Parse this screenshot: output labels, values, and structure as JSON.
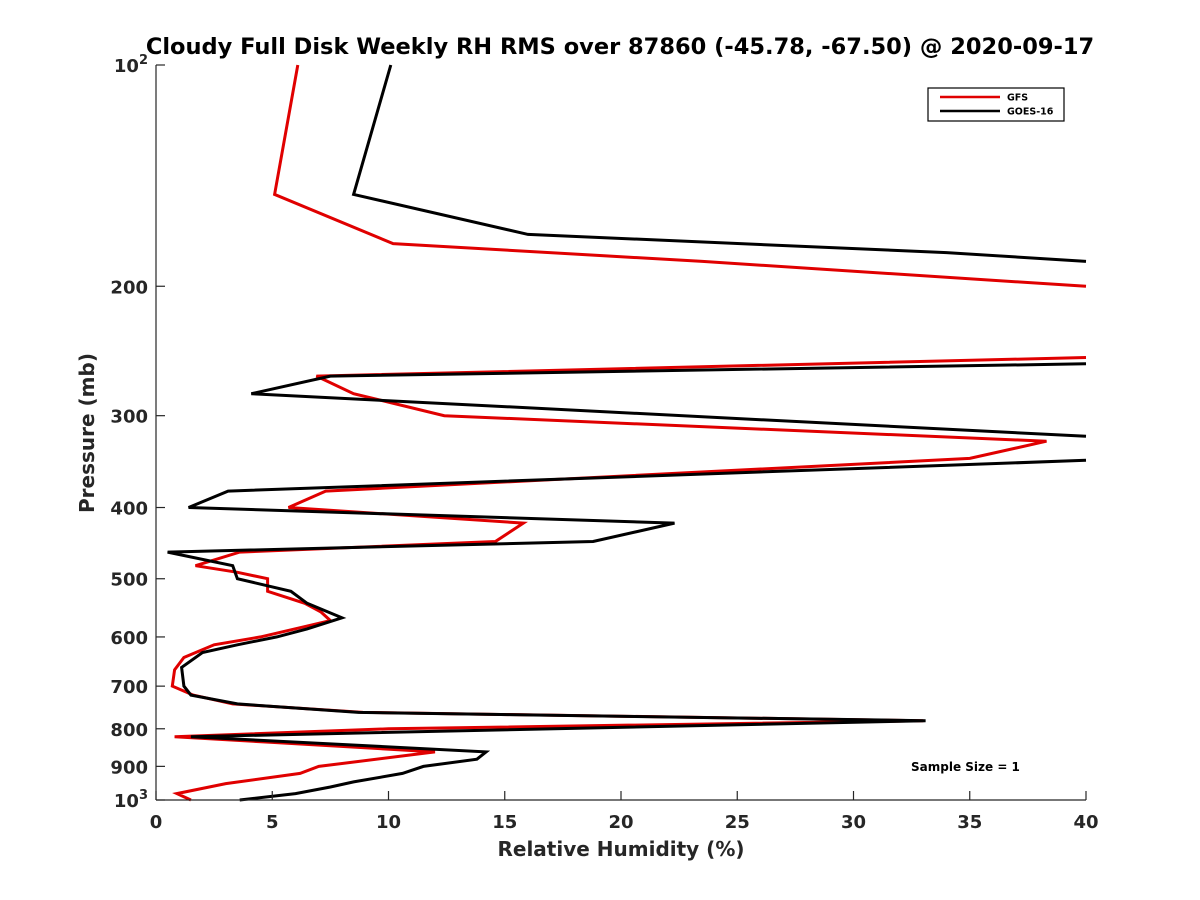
{
  "chart_data": {
    "type": "line",
    "title": "Cloudy Full Disk Weekly RH RMS over 87860 (-45.78, -67.50) @ 2020-09-17",
    "xlabel": "Relative Humidity (%)",
    "ylabel": "Pressure (mb)",
    "xlim": [
      0,
      40
    ],
    "ylim": [
      100,
      1000
    ],
    "yscale": "log",
    "y_reversed": true,
    "grid": false,
    "legend_position": "top-right",
    "x_ticks": [
      "0",
      "5",
      "10",
      "15",
      "20",
      "25",
      "30",
      "35",
      "40"
    ],
    "y_ticks": [
      {
        "value": 100,
        "base": "10",
        "exp": "2"
      },
      {
        "value": 200,
        "label": "200"
      },
      {
        "value": 300,
        "label": "300"
      },
      {
        "value": 400,
        "label": "400"
      },
      {
        "value": 500,
        "label": "500"
      },
      {
        "value": 600,
        "label": "600"
      },
      {
        "value": 700,
        "label": "700"
      },
      {
        "value": 800,
        "label": "800"
      },
      {
        "value": 900,
        "label": "900"
      },
      {
        "value": 1000,
        "base": "10",
        "exp": "3"
      }
    ],
    "series": [
      {
        "name": "GFS",
        "color": "#e00000",
        "points": [
          [
            6.1,
            100
          ],
          [
            5.1,
            150
          ],
          [
            10.2,
            175
          ],
          [
            23.5,
            185
          ],
          [
            40.0,
            200
          ],
          [
            null,
            null
          ],
          [
            40.0,
            250
          ],
          [
            6.9,
            265
          ],
          [
            8.5,
            280
          ],
          [
            12.4,
            300
          ],
          [
            38.3,
            325
          ],
          [
            35.0,
            343
          ],
          [
            7.3,
            380
          ],
          [
            5.7,
            400
          ],
          [
            15.8,
            420
          ],
          [
            14.6,
            445
          ],
          [
            3.6,
            460
          ],
          [
            1.7,
            480
          ],
          [
            3.5,
            490
          ],
          [
            4.8,
            500
          ],
          [
            4.8,
            520
          ],
          [
            6.4,
            540
          ],
          [
            7.1,
            555
          ],
          [
            7.5,
            570
          ],
          [
            6.5,
            580
          ],
          [
            4.5,
            600
          ],
          [
            2.5,
            615
          ],
          [
            1.2,
            640
          ],
          [
            0.8,
            665
          ],
          [
            0.7,
            700
          ],
          [
            1.6,
            720
          ],
          [
            3.3,
            740
          ],
          [
            8.9,
            760
          ],
          [
            33.0,
            780
          ],
          [
            10.0,
            800
          ],
          [
            0.8,
            820
          ],
          [
            5.0,
            835
          ],
          [
            12.0,
            860
          ],
          [
            7.0,
            900
          ],
          [
            6.2,
            920
          ],
          [
            3.0,
            950
          ],
          [
            0.9,
            980
          ],
          [
            1.5,
            1000
          ]
        ]
      },
      {
        "name": "GOES-16",
        "color": "#000000",
        "points": [
          [
            10.1,
            100
          ],
          [
            8.5,
            150
          ],
          [
            16.0,
            170
          ],
          [
            34.0,
            180
          ],
          [
            40.0,
            185
          ],
          [
            null,
            null
          ],
          [
            40.0,
            255
          ],
          [
            7.5,
            265
          ],
          [
            4.1,
            280
          ],
          [
            40.0,
            320
          ],
          [
            null,
            null
          ],
          [
            40.0,
            345
          ],
          [
            3.1,
            380
          ],
          [
            1.4,
            400
          ],
          [
            22.3,
            420
          ],
          [
            18.8,
            445
          ],
          [
            0.5,
            460
          ],
          [
            3.3,
            480
          ],
          [
            3.5,
            500
          ],
          [
            5.8,
            520
          ],
          [
            6.5,
            540
          ],
          [
            8.0,
            565
          ],
          [
            6.5,
            585
          ],
          [
            5.2,
            600
          ],
          [
            3.5,
            615
          ],
          [
            2.0,
            630
          ],
          [
            1.1,
            660
          ],
          [
            1.2,
            700
          ],
          [
            1.5,
            720
          ],
          [
            3.5,
            740
          ],
          [
            8.7,
            760
          ],
          [
            33.1,
            780
          ],
          [
            1.5,
            820
          ],
          [
            14.2,
            860
          ],
          [
            13.8,
            880
          ],
          [
            11.5,
            900
          ],
          [
            10.6,
            920
          ],
          [
            8.5,
            945
          ],
          [
            7.5,
            960
          ],
          [
            6.0,
            980
          ],
          [
            3.6,
            1000
          ]
        ]
      }
    ],
    "legend": [
      {
        "label": "GFS",
        "color": "#e00000"
      },
      {
        "label": "GOES-16",
        "color": "#000000"
      }
    ],
    "annotation": "Sample Size = 1"
  }
}
